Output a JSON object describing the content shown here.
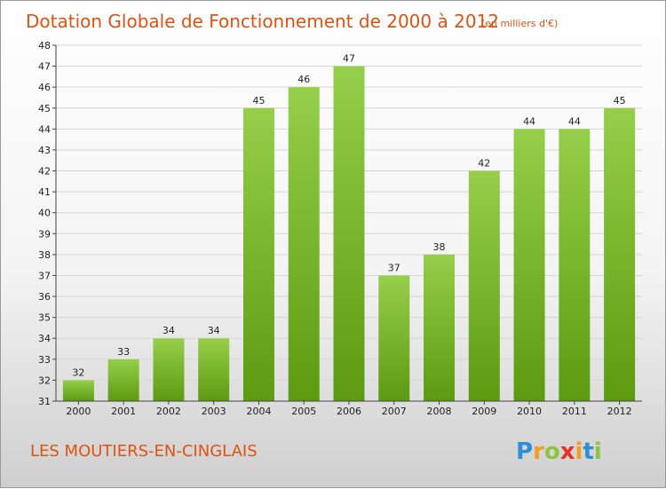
{
  "chart_data": {
    "type": "bar",
    "title": "Dotation Globale de Fonctionnement de 2000 à 2012",
    "subtitle": "(en milliers d'€)",
    "categories": [
      "2000",
      "2001",
      "2002",
      "2003",
      "2004",
      "2005",
      "2006",
      "2007",
      "2008",
      "2009",
      "2010",
      "2011",
      "2012"
    ],
    "values": [
      32,
      33,
      34,
      34,
      45,
      46,
      47,
      37,
      38,
      42,
      44,
      44,
      45
    ],
    "ylim": [
      31,
      48
    ],
    "yticks": [
      31,
      32,
      33,
      34,
      35,
      36,
      37,
      38,
      39,
      40,
      41,
      42,
      43,
      44,
      45,
      46,
      47,
      48
    ],
    "grid": true,
    "bar_color_top": "#96cf4b",
    "bar_color_bottom": "#5c9a10"
  },
  "footer": {
    "commune": "LES MOUTIERS-EN-CINGLAIS",
    "logo": [
      "P",
      "r",
      "o",
      "x",
      "i",
      "t",
      "i"
    ],
    "logo_colors": [
      "#2f8fd6",
      "#f29d1c",
      "#8cc63f",
      "#e6332a",
      "#f29d1c",
      "#2f8fd6",
      "#8cc63f"
    ]
  }
}
